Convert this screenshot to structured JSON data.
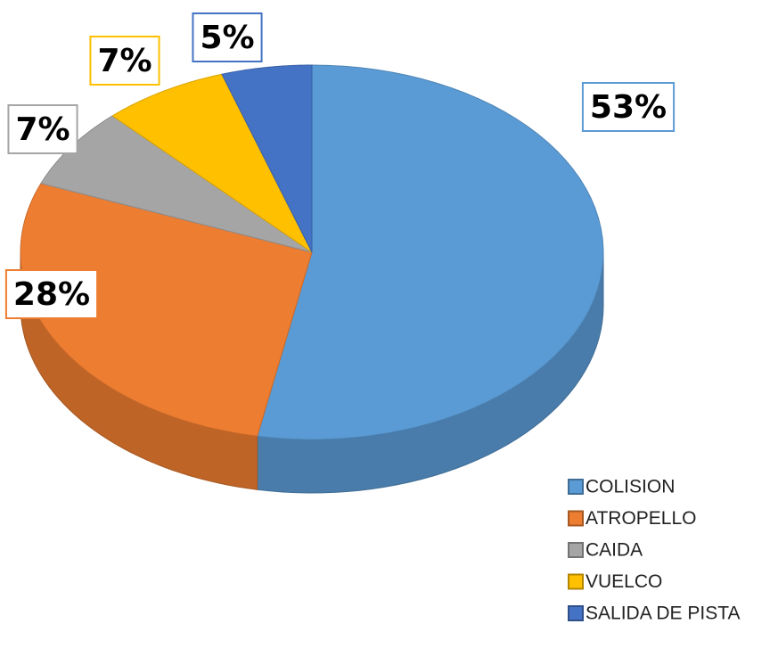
{
  "chart_data": {
    "type": "pie",
    "categories": [
      "COLISION",
      "ATROPELLO",
      "CAIDA",
      "VUELCO",
      "SALIDA DE PISTA"
    ],
    "values": [
      53,
      28,
      7,
      7,
      5
    ],
    "value_labels": [
      "53%",
      "28%",
      "7%",
      "7%",
      "5%"
    ],
    "colors": [
      "#5b9bd5",
      "#ed7d31",
      "#a5a5a5",
      "#ffc000",
      "#4472c4"
    ],
    "legend": "bottom-right"
  }
}
